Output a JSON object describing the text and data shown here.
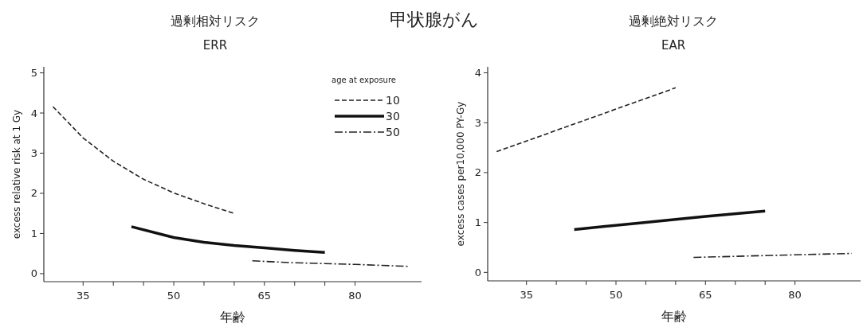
{
  "chart_data": [
    {
      "type": "line",
      "title": "過剰相対リスク",
      "subtitle": "ERR",
      "annotations": [
        "甲状腺がん"
      ],
      "xlabel": "年齢",
      "ylabel": "excess relative risk at 1 Gy",
      "legend_title": "age at exposure",
      "legend": "top right",
      "grid": false,
      "xlim": [
        28.5,
        91
      ],
      "xticks": [
        35,
        {
          "value": 40,
          "label": null
        },
        {
          "value": 45,
          "label": null
        },
        50,
        {
          "value": 55,
          "label": null
        },
        {
          "value": 60,
          "label": null
        },
        65,
        {
          "value": 70,
          "label": null
        },
        {
          "value": 75,
          "label": null
        },
        80
      ],
      "ylim": [
        -0.2,
        5.15
      ],
      "yticks": [
        0,
        1,
        2,
        3,
        4,
        5
      ],
      "series": [
        {
          "name": "10",
          "color": "#222222",
          "line_style": "dashed",
          "x": [
            30,
            35,
            40,
            45,
            50,
            55,
            60
          ],
          "values": [
            4.16,
            3.38,
            2.8,
            2.35,
            2.01,
            1.74,
            1.5
          ]
        },
        {
          "name": "30",
          "color": "#111111",
          "line_style": "solid",
          "x": [
            43,
            50,
            55,
            60,
            65,
            70,
            75
          ],
          "values": [
            1.17,
            0.9,
            0.78,
            0.7,
            0.64,
            0.58,
            0.53
          ]
        },
        {
          "name": "50",
          "color": "#222222",
          "line_style": "dashdot",
          "x": [
            63,
            70,
            80,
            89
          ],
          "values": [
            0.32,
            0.27,
            0.23,
            0.18
          ]
        }
      ]
    },
    {
      "type": "line",
      "title": "過剰絶対リスク",
      "subtitle": "EAR",
      "xlabel": "年齢",
      "ylabel": "excess cases per10,000 PY-Gy",
      "grid": false,
      "xlim": [
        28.5,
        91
      ],
      "xticks": [
        35,
        {
          "value": 40,
          "label": null
        },
        {
          "value": 45,
          "label": null
        },
        50,
        {
          "value": 55,
          "label": null
        },
        {
          "value": 60,
          "label": null
        },
        65,
        {
          "value": 70,
          "label": null
        },
        {
          "value": 75,
          "label": null
        },
        80
      ],
      "ylim": [
        -0.17,
        4.12
      ],
      "yticks": [
        0,
        1,
        2,
        3,
        4
      ],
      "series": [
        {
          "color": "#222222",
          "line_style": "dashed",
          "x": [
            30,
            45,
            60
          ],
          "values": [
            2.42,
            3.06,
            3.7
          ]
        },
        {
          "color": "#111111",
          "line_style": "solid",
          "x": [
            43,
            54,
            65,
            75
          ],
          "values": [
            0.86,
            0.99,
            1.12,
            1.23
          ]
        },
        {
          "color": "#222222",
          "line_style": "dashdot",
          "x": [
            63,
            76,
            89.5
          ],
          "values": [
            0.3,
            0.34,
            0.38
          ]
        }
      ]
    }
  ]
}
